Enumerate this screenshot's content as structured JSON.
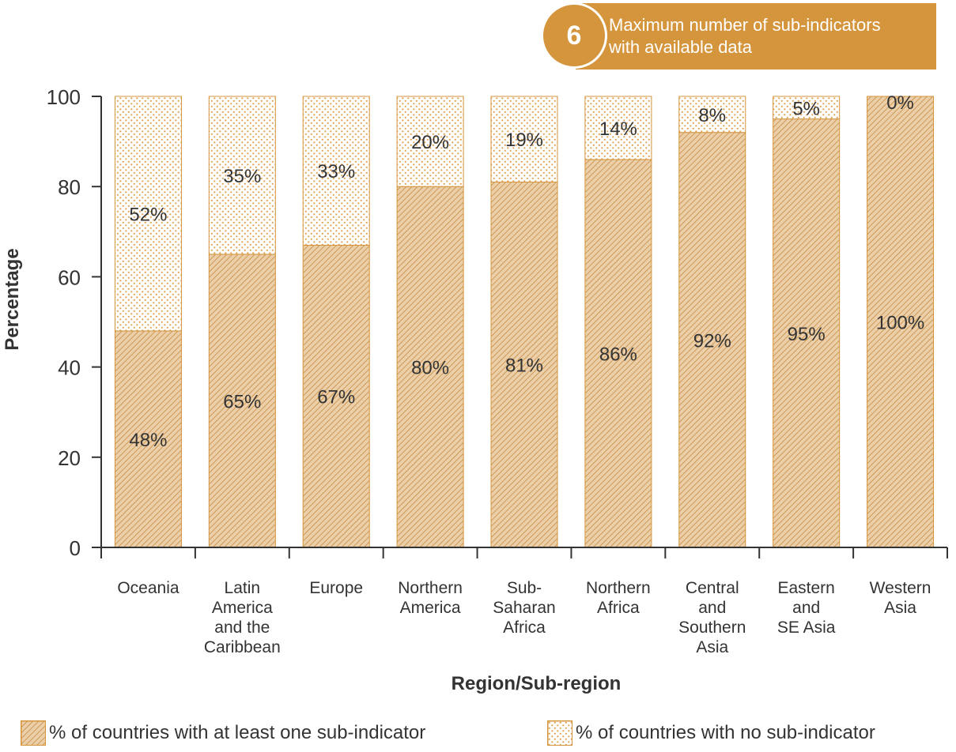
{
  "header": {
    "badge_number": "6",
    "badge_line1": "Maximum number of sub-indicators",
    "badge_line2": "with available data"
  },
  "colors": {
    "accent": "#d4953c",
    "hatch_fill": "#e8c9a0",
    "hatch_line": "#c98b3a",
    "dot": "#e0a050",
    "axis": "#333333"
  },
  "chart_data": {
    "type": "bar",
    "stacked": true,
    "title": "",
    "xlabel": "Region/Sub-region",
    "ylabel": "Percentage",
    "ylim": [
      0,
      100
    ],
    "yticks": [
      0,
      20,
      40,
      60,
      80,
      100
    ],
    "grid": false,
    "legend_position": "bottom",
    "categories": [
      [
        "Oceania"
      ],
      [
        "Latin",
        "America",
        "and the",
        "Caribbean"
      ],
      [
        "Europe"
      ],
      [
        "Northern",
        "America"
      ],
      [
        "Sub-",
        "Saharan",
        "Africa"
      ],
      [
        "Northern",
        "Africa"
      ],
      [
        "Central",
        "and",
        "Southern",
        "Asia"
      ],
      [
        "Eastern",
        "and",
        "SE Asia"
      ],
      [
        "Western",
        "Asia"
      ]
    ],
    "series": [
      {
        "name": "% of countries with at least one sub-indicator",
        "pattern": "hatch",
        "values": [
          48,
          65,
          67,
          80,
          81,
          86,
          92,
          95,
          100
        ],
        "labels": [
          "48%",
          "65%",
          "67%",
          "80%",
          "81%",
          "86%",
          "92%",
          "95%",
          "100%"
        ]
      },
      {
        "name": "% of countries with no sub-indicator",
        "pattern": "dots",
        "values": [
          52,
          35,
          33,
          20,
          19,
          14,
          8,
          5,
          0
        ],
        "labels": [
          "52%",
          "35%",
          "33%",
          "20%",
          "19%",
          "14%",
          "8%",
          "5%",
          "0%"
        ]
      }
    ]
  }
}
